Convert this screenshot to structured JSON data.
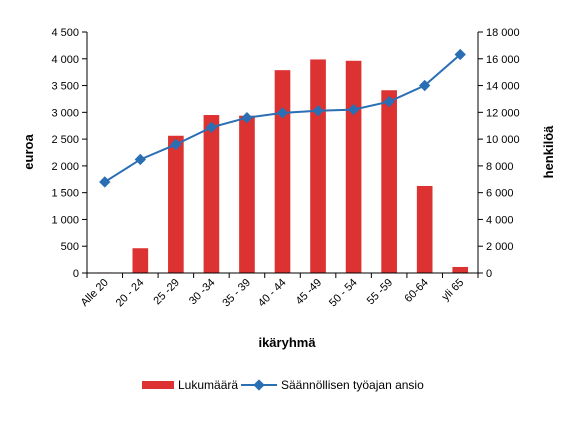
{
  "chart_data": {
    "type": "bar",
    "categories": [
      "Alle 20",
      "20 - 24",
      "25 -29",
      "30 -34",
      "35 - 39",
      "40 - 44",
      "45 -49",
      "50 - 54",
      "55 -59",
      "60-64",
      "yli 65"
    ],
    "xlabel": "ikäryhmä",
    "y_left": {
      "label": "euroa",
      "range": [
        0,
        4500
      ],
      "ticks": [
        0,
        500,
        1000,
        1500,
        2000,
        2500,
        3000,
        3500,
        4000,
        4500
      ],
      "tick_labels": [
        "0",
        "500",
        "1 000",
        "1 500",
        "2 000",
        "2 500",
        "3 000",
        "3 500",
        "4 000",
        "4 500"
      ]
    },
    "y_right": {
      "label": "henkilöä",
      "range": [
        0,
        18000
      ],
      "ticks": [
        0,
        2000,
        4000,
        6000,
        8000,
        10000,
        12000,
        14000,
        16000,
        18000
      ],
      "tick_labels": [
        "0",
        "2 000",
        "4 000",
        "6 000",
        "8 000",
        "10 000",
        "12 000",
        "14 000",
        "16 000",
        "18 000"
      ]
    },
    "series": [
      {
        "name": "Lukumäärä",
        "type": "bar",
        "axis": "right",
        "color": "#dc3232",
        "values": [
          40,
          1850,
          10250,
          11800,
          11750,
          15150,
          15950,
          15850,
          13650,
          6500,
          450
        ]
      },
      {
        "name": "Säännöllisen työajan ansio",
        "type": "line",
        "axis": "left",
        "color": "#2a6eb4",
        "marker": "diamond",
        "values": [
          1700,
          2120,
          2400,
          2720,
          2900,
          2990,
          3030,
          3050,
          3200,
          3500,
          4080
        ]
      }
    ],
    "legend": {
      "position": "bottom"
    },
    "grid": false
  }
}
